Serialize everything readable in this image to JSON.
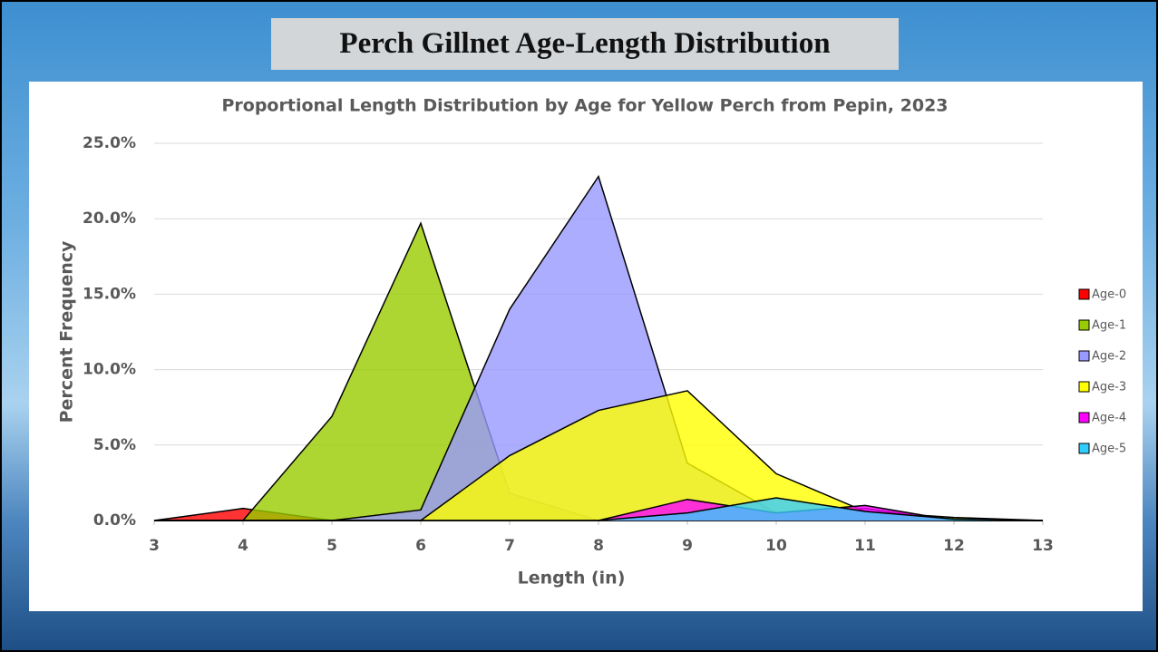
{
  "slide_title": "Perch Gillnet Age-Length Distribution",
  "chart_data": {
    "type": "area",
    "title": "Proportional Length Distribution by Age for Yellow Perch from Pepin, 2023",
    "x_label": "Length (in)",
    "y_label": "Percent Frequency",
    "x": [
      3,
      4,
      5,
      6,
      7,
      8,
      9,
      10,
      11,
      12,
      13
    ],
    "series": [
      {
        "name": "Age-0",
        "color": "#ff0000",
        "values": [
          0,
          0.8,
          0,
          0,
          0,
          0,
          0,
          0,
          0,
          0,
          0
        ]
      },
      {
        "name": "Age-1",
        "color": "#99cc00",
        "values": [
          0,
          0,
          6.9,
          19.7,
          1.8,
          0,
          0,
          0,
          0,
          0,
          0
        ]
      },
      {
        "name": "Age-2",
        "color": "#9999ff",
        "values": [
          0,
          0,
          0,
          0.7,
          14.0,
          22.8,
          3.8,
          0.5,
          0.8,
          0,
          0
        ]
      },
      {
        "name": "Age-3",
        "color": "#ffff00",
        "values": [
          0,
          0,
          0,
          0,
          4.3,
          7.3,
          8.6,
          3.1,
          0.6,
          0.2,
          0
        ]
      },
      {
        "name": "Age-4",
        "color": "#ff00ff",
        "values": [
          0,
          0,
          0,
          0,
          0,
          0,
          1.4,
          0.5,
          1.0,
          0,
          0
        ]
      },
      {
        "name": "Age-5",
        "color": "#33ccff",
        "values": [
          0,
          0,
          0,
          0,
          0,
          0,
          0.5,
          1.5,
          0.6,
          0.1,
          0
        ]
      }
    ],
    "xlim": [
      3,
      13
    ],
    "xticks": [
      3,
      4,
      5,
      6,
      7,
      8,
      9,
      10,
      11,
      12,
      13
    ],
    "ylim": [
      0,
      25
    ],
    "yticks": [
      {
        "value": 0,
        "label": "0.0%"
      },
      {
        "value": 5,
        "label": "5.0%"
      },
      {
        "value": 10,
        "label": "10.0%"
      },
      {
        "value": 15,
        "label": "15.0%"
      },
      {
        "value": 20,
        "label": "20.0%"
      },
      {
        "value": 25,
        "label": "25.0%"
      }
    ],
    "grid": true,
    "legend": "right"
  }
}
